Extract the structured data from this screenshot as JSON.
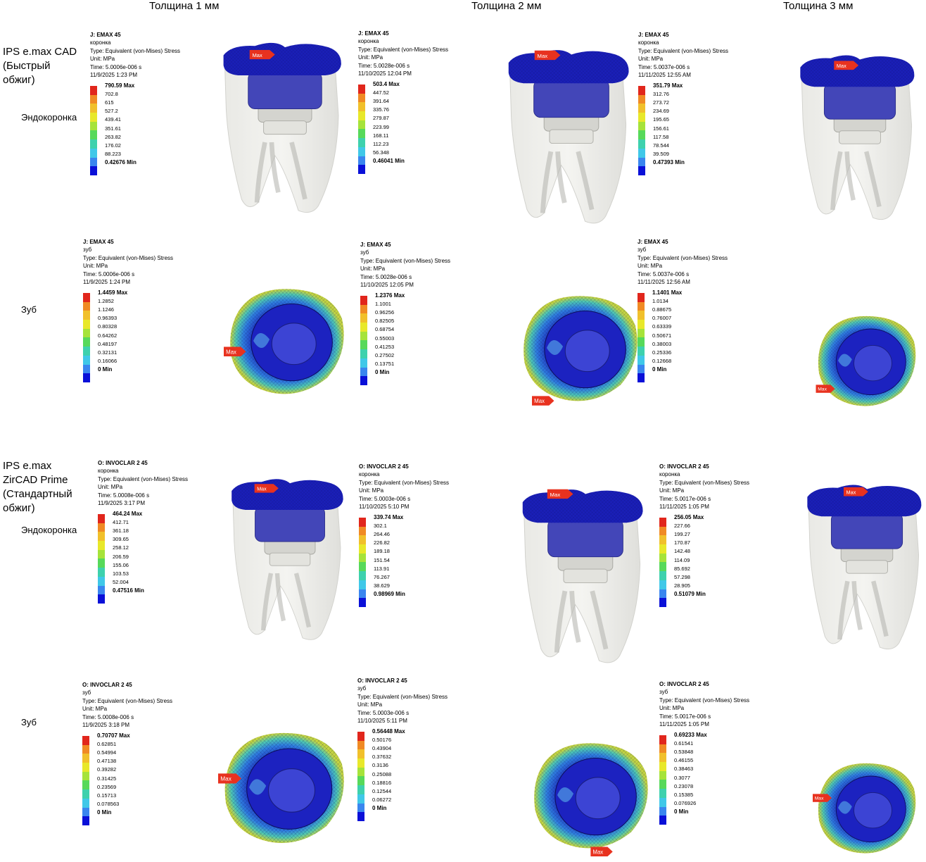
{
  "columns": [
    "Толщина 1 мм",
    "Толщина 2 мм",
    "Толщина 3 мм"
  ],
  "materials": [
    {
      "name": "IPS e.max CAD (Быстрый обжиг)",
      "lines": [
        "IPS e.max CAD",
        "(Быстрый",
        "обжиг)"
      ]
    },
    {
      "name": "IPS e.max ZirCAD Prime (Стандартный обжиг)",
      "lines": [
        "IPS e.max",
        "ZirCAD Prime",
        "(Стандартный",
        "обжиг)"
      ]
    }
  ],
  "row_labels": {
    "crown": "Эндокоронка",
    "tooth": "Зуб"
  },
  "max_marker": "Max",
  "legends": [
    {
      "title": "J: EMAX 45",
      "part": "коронка",
      "type": "Type: Equivalent (von-Mises) Stress",
      "unit": "Unit: MPa",
      "time": "Time: 5.0006e-006 s",
      "date": "11/9/2025 1:23 PM",
      "values": [
        "790.59 Max",
        "702.8",
        "615",
        "527.2",
        "439.41",
        "351.61",
        "263.82",
        "176.02",
        "88.223",
        "0.42676 Min"
      ]
    },
    {
      "title": "J: EMAX 45",
      "part": "коронка",
      "type": "Type: Equivalent (von-Mises) Stress",
      "unit": "Unit: MPa",
      "time": "Time: 5.0028e-006 s",
      "date": "11/10/2025 12:04 PM",
      "values": [
        "503.4 Max",
        "447.52",
        "391.64",
        "335.76",
        "279.87",
        "223.99",
        "168.11",
        "112.23",
        "56.348",
        "0.46041 Min"
      ]
    },
    {
      "title": "J: EMAX 45",
      "part": "коронка",
      "type": "Type: Equivalent (von-Mises) Stress",
      "unit": "Unit: MPa",
      "time": "Time: 5.0037e-006 s",
      "date": "11/11/2025 12:55 AM",
      "values": [
        "351.79 Max",
        "312.76",
        "273.72",
        "234.69",
        "195.65",
        "156.61",
        "117.58",
        "78.544",
        "39.509",
        "0.47393 Min"
      ]
    },
    {
      "title": "J: EMAX 45",
      "part": "зуб",
      "type": "Type: Equivalent (von-Mises) Stress",
      "unit": "Unit: MPa",
      "time": "Time: 5.0006e-006 s",
      "date": "11/9/2025 1:24 PM",
      "values": [
        "1.4459 Max",
        "1.2852",
        "1.1246",
        "0.96393",
        "0.80328",
        "0.64262",
        "0.48197",
        "0.32131",
        "0.16066",
        "0 Min"
      ]
    },
    {
      "title": "J: EMAX 45",
      "part": "зуб",
      "type": "Type: Equivalent (von-Mises) Stress",
      "unit": "Unit: MPa",
      "time": "Time: 5.0028e-006 s",
      "date": "11/10/2025 12:05 PM",
      "values": [
        "1.2376 Max",
        "1.1001",
        "0.96256",
        "0.82505",
        "0.68754",
        "0.55003",
        "0.41253",
        "0.27502",
        "0.13751",
        "0 Min"
      ]
    },
    {
      "title": "J: EMAX 45",
      "part": "зуб",
      "type": "Type: Equivalent (von-Mises) Stress",
      "unit": "Unit: MPa",
      "time": "Time: 5.0037e-006 s",
      "date": "11/11/2025 12:56 AM",
      "values": [
        "1.1401 Max",
        "1.0134",
        "0.88675",
        "0.76007",
        "0.63339",
        "0.50671",
        "0.38003",
        "0.25336",
        "0.12668",
        "0 Min"
      ]
    },
    {
      "title": "O: INVOCLAR 2 45",
      "part": "коронка",
      "type": "Type: Equivalent (von-Mises) Stress",
      "unit": "Unit: MPa",
      "time": "Time: 5.0008e-006 s",
      "date": "11/9/2025 3:17 PM",
      "values": [
        "464.24 Max",
        "412.71",
        "361.18",
        "309.65",
        "258.12",
        "206.59",
        "155.06",
        "103.53",
        "52.004",
        "0.47516 Min"
      ]
    },
    {
      "title": "O: INVOCLAR 2 45",
      "part": "коронка",
      "type": "Type: Equivalent (von-Mises) Stress",
      "unit": "Unit: MPa",
      "time": "Time: 5.0003e-006 s",
      "date": "11/10/2025 5:10 PM",
      "values": [
        "339.74 Max",
        "302.1",
        "264.46",
        "226.82",
        "189.18",
        "151.54",
        "113.91",
        "76.267",
        "38.629",
        "0.98969 Min"
      ]
    },
    {
      "title": "O: INVOCLAR 2 45",
      "part": "коронка",
      "type": "Type: Equivalent (von-Mises) Stress",
      "unit": "Unit: MPa",
      "time": "Time: 5.0017e-006 s",
      "date": "11/11/2025 1:05 PM",
      "values": [
        "256.05 Max",
        "227.66",
        "199.27",
        "170.87",
        "142.48",
        "114.09",
        "85.692",
        "57.298",
        "28.905",
        "0.51079 Min"
      ]
    },
    {
      "title": "O: INVOCLAR 2 45",
      "part": "зуб",
      "type": "Type: Equivalent (von-Mises) Stress",
      "unit": "Unit: MPa",
      "time": "Time: 5.0008e-006 s",
      "date": "11/9/2025 3:18 PM",
      "values": [
        "0.70707 Max",
        "0.62851",
        "0.54994",
        "0.47138",
        "0.39282",
        "0.31425",
        "0.23569",
        "0.15713",
        "0.078563",
        "0 Min"
      ]
    },
    {
      "title": "O: INVOCLAR 2 45",
      "part": "зуб",
      "type": "Type: Equivalent (von-Mises) Stress",
      "unit": "Unit: MPa",
      "time": "Time: 5.0003e-006 s",
      "date": "11/10/2025 5:11 PM",
      "values": [
        "0.56448 Max",
        "0.50176",
        "0.43904",
        "0.37632",
        "0.3136",
        "0.25088",
        "0.18816",
        "0.12544",
        "0.06272",
        "0 Min"
      ]
    },
    {
      "title": "O: INVOCLAR 2 45",
      "part": "зуб",
      "type": "Type: Equivalent (von-Mises) Stress",
      "unit": "Unit: MPa",
      "time": "Time: 5.0017e-006 s",
      "date": "11/11/2025 1:05 PM",
      "values": [
        "0.69233 Max",
        "0.61541",
        "0.53848",
        "0.46155",
        "0.38463",
        "0.3077",
        "0.23078",
        "0.15385",
        "0.076926",
        "0 Min"
      ]
    }
  ],
  "colors": {
    "scale": [
      "#e1261c",
      "#f08a24",
      "#f1c02b",
      "#e8e82a",
      "#a6e33a",
      "#57d95a",
      "#3ed1ad",
      "#40c8e8",
      "#3a86ef",
      "#0a10d8"
    ],
    "mesh_blue": "#1a1fb8",
    "max_marker": "#e8321f"
  }
}
